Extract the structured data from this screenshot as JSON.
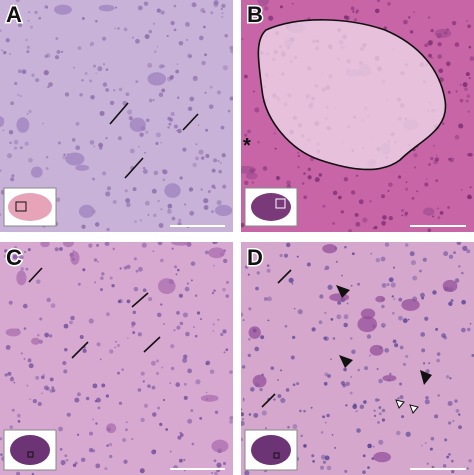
{
  "panels": [
    {
      "label": "A"
    },
    {
      "label": "B",
      "annotation": "*"
    },
    {
      "label": "C"
    },
    {
      "label": "D"
    }
  ]
}
